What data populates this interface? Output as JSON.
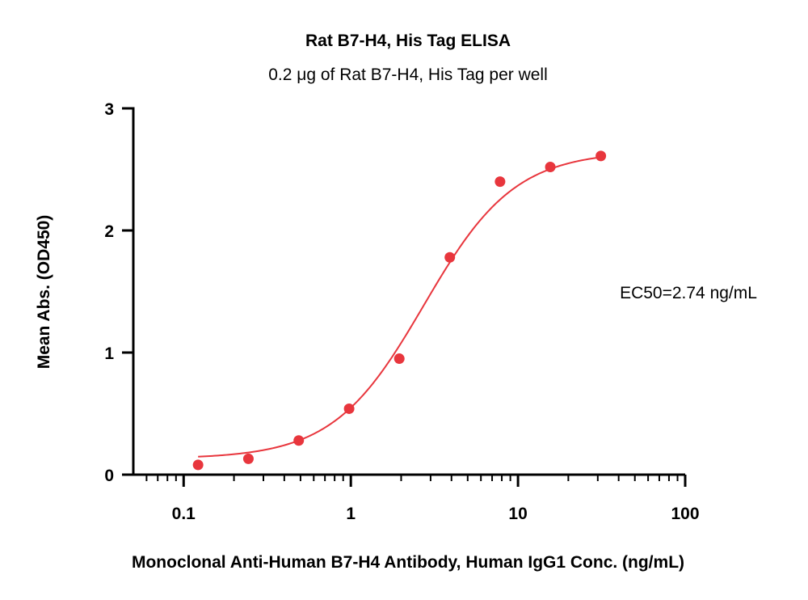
{
  "chart_data": {
    "type": "scatter",
    "title": "Rat B7-H4, His Tag ELISA",
    "subtitle": "0.2 μg of Rat B7-H4, His Tag per well",
    "xlabel": "Monoclonal Anti-Human B7-H4 Antibody, Human IgG1 Conc. (ng/mL)",
    "ylabel": "Mean Abs. (OD450)",
    "x_scale": "log",
    "xlim": [
      0.05,
      100
    ],
    "ylim": [
      0,
      3
    ],
    "x_ticks": [
      0.1,
      1,
      10,
      100
    ],
    "x_tick_labels": [
      "0.1",
      "1",
      "10",
      "100"
    ],
    "y_ticks": [
      0,
      1,
      2,
      3
    ],
    "y_tick_labels": [
      "0",
      "1",
      "2",
      "3"
    ],
    "grid": false,
    "color": "#e8363d",
    "annotation": "EC50=2.74 ng/mL",
    "ec50": 2.74,
    "series": [
      {
        "x": [
          0.122,
          0.244,
          0.488,
          0.977,
          1.95,
          3.91,
          7.81,
          15.6,
          31.3
        ],
        "y": [
          0.08,
          0.13,
          0.28,
          0.54,
          0.95,
          1.78,
          2.4,
          2.52,
          2.61
        ]
      }
    ],
    "fit": {
      "model": "4PL",
      "bottom": 0.13,
      "top": 2.65,
      "ec50": 2.74,
      "hill": 1.6,
      "x_range": [
        0.122,
        31.3
      ]
    }
  }
}
